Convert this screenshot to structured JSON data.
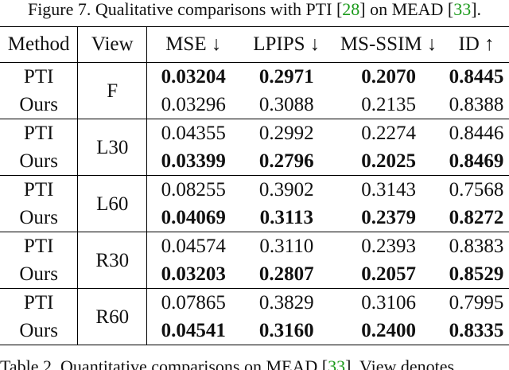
{
  "caption_top": {
    "before_ref1": "Figure 7. Qualitative comparisons with PTI [",
    "ref1": "28",
    "between": "] on MEAD [",
    "ref2": "33",
    "after": "]."
  },
  "table": {
    "headers": {
      "method": "Method",
      "view": "View",
      "mse": "MSE ↓",
      "lpips": "LPIPS ↓",
      "ms_ssim": "MS-SSIM ↓",
      "id": "ID ↑"
    },
    "groups": [
      {
        "view": "F",
        "rows": [
          {
            "method": "PTI",
            "mse": "0.03204",
            "lpips": "0.2971",
            "ms_ssim": "0.2070",
            "id": "0.8445"
          },
          {
            "method": "Ours",
            "mse": "0.03296",
            "lpips": "0.3088",
            "ms_ssim": "0.2135",
            "id": "0.8388"
          }
        ]
      },
      {
        "view": "L30",
        "rows": [
          {
            "method": "PTI",
            "mse": "0.04355",
            "lpips": "0.2992",
            "ms_ssim": "0.2274",
            "id": "0.8446"
          },
          {
            "method": "Ours",
            "mse": "0.03399",
            "lpips": "0.2796",
            "ms_ssim": "0.2025",
            "id": "0.8469"
          }
        ]
      },
      {
        "view": "L60",
        "rows": [
          {
            "method": "PTI",
            "mse": "0.08255",
            "lpips": "0.3902",
            "ms_ssim": "0.3143",
            "id": "0.7568"
          },
          {
            "method": "Ours",
            "mse": "0.04069",
            "lpips": "0.3113",
            "ms_ssim": "0.2379",
            "id": "0.8272"
          }
        ]
      },
      {
        "view": "R30",
        "rows": [
          {
            "method": "PTI",
            "mse": "0.04574",
            "lpips": "0.3110",
            "ms_ssim": "0.2393",
            "id": "0.8383"
          },
          {
            "method": "Ours",
            "mse": "0.03203",
            "lpips": "0.2807",
            "ms_ssim": "0.2057",
            "id": "0.8529"
          }
        ]
      },
      {
        "view": "R60",
        "rows": [
          {
            "method": "PTI",
            "mse": "0.07865",
            "lpips": "0.3829",
            "ms_ssim": "0.3106",
            "id": "0.7995"
          },
          {
            "method": "Ours",
            "mse": "0.04541",
            "lpips": "0.3160",
            "ms_ssim": "0.2400",
            "id": "0.8335"
          }
        ]
      }
    ]
  },
  "caption_bottom": {
    "before_ref": "Table 2. Quantitative comparisons on MEAD [",
    "ref": "33",
    "after": "]. View denotes"
  }
}
